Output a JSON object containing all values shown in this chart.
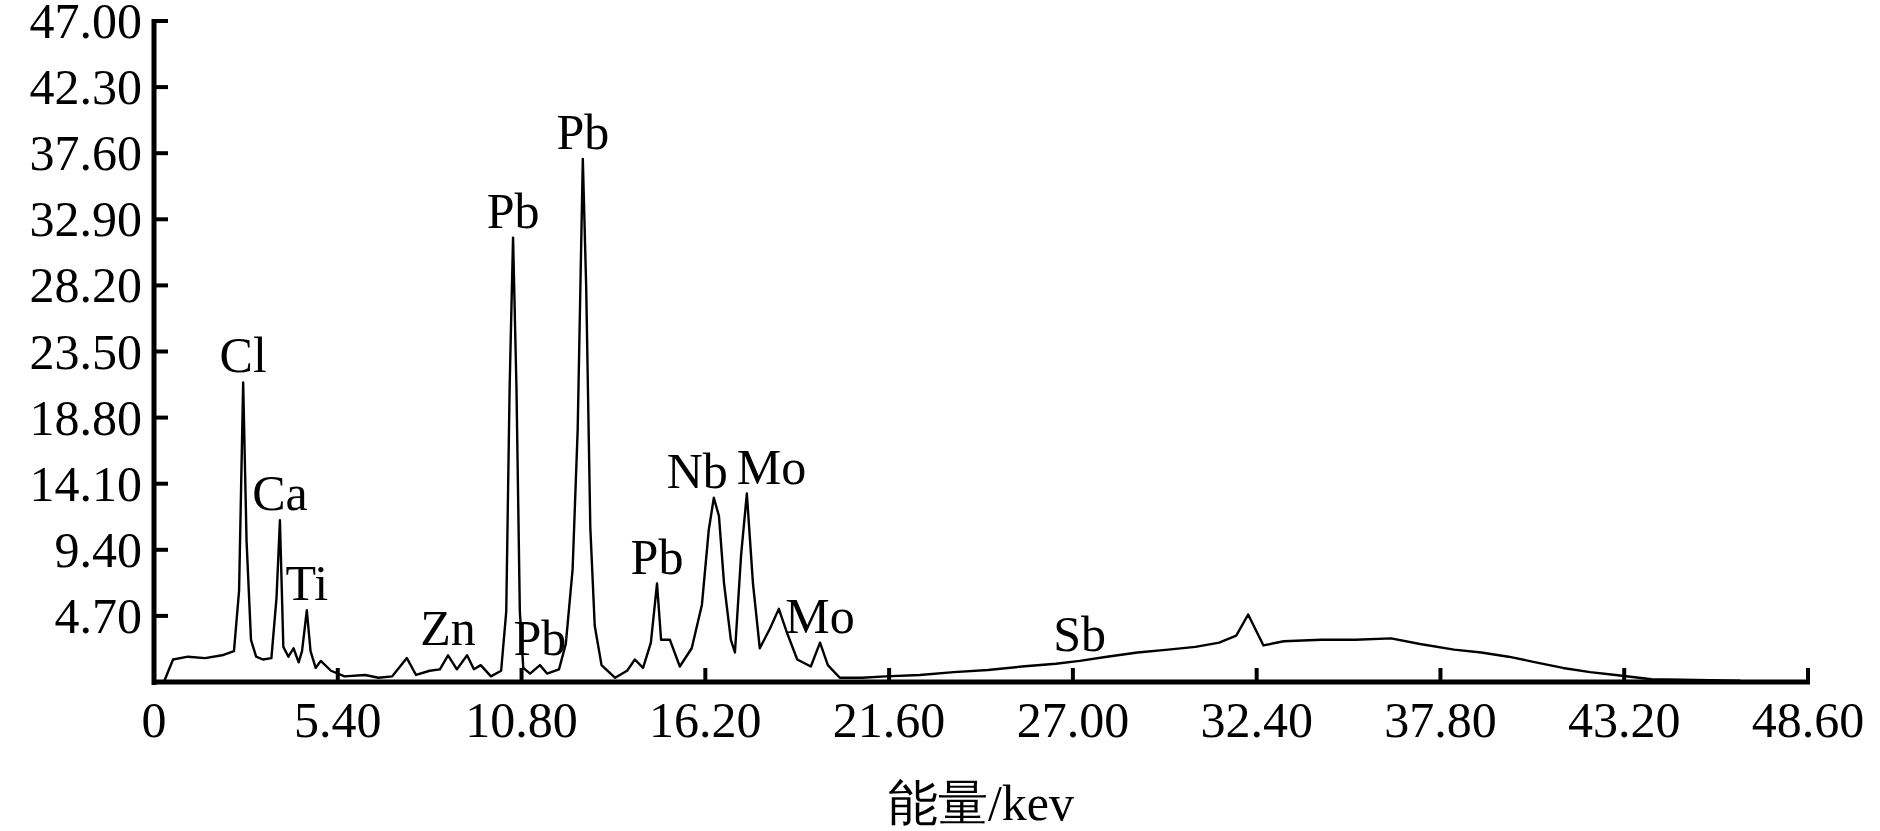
{
  "chart_data": {
    "type": "line",
    "xlabel": "能量/kev",
    "xlim": [
      0,
      48.6
    ],
    "ylim": [
      0,
      47
    ],
    "xticks": [
      0,
      {
        "value": 5.4,
        "label": "5.40"
      },
      {
        "value": 10.8,
        "label": "10.80"
      },
      {
        "value": 16.2,
        "label": "16.20"
      },
      {
        "value": 21.6,
        "label": "21.60"
      },
      {
        "value": 27,
        "label": "27.00"
      },
      {
        "value": 32.4,
        "label": "32.40"
      },
      {
        "value": 37.8,
        "label": "37.80"
      },
      {
        "value": 43.2,
        "label": "43.20"
      },
      {
        "value": 48.6,
        "label": "48.60"
      }
    ],
    "yticks": [
      {
        "value": 4.7,
        "label": "4.70"
      },
      {
        "value": 9.4,
        "label": "9.40"
      },
      {
        "value": 14.1,
        "label": "14.10"
      },
      {
        "value": 18.8,
        "label": "18.80"
      },
      {
        "value": 23.5,
        "label": "23.50"
      },
      {
        "value": 28.2,
        "label": "28.20"
      },
      {
        "value": 32.9,
        "label": "32.90"
      },
      {
        "value": 37.6,
        "label": "37.60"
      },
      {
        "value": 42.3,
        "label": "42.30"
      },
      {
        "value": 47,
        "label": "47.00"
      }
    ],
    "grid": false,
    "marker": "none",
    "line_style": "solid",
    "series": [
      {
        "color": "#000000",
        "x": [
          0,
          0.3,
          0.56,
          1.0,
          1.5,
          2.0,
          2.35,
          2.5,
          2.62,
          2.72,
          2.85,
          3.0,
          3.2,
          3.45,
          3.6,
          3.7,
          3.8,
          3.95,
          4.1,
          4.25,
          4.35,
          4.49,
          4.6,
          4.75,
          4.9,
          5.2,
          5.6,
          6.2,
          6.6,
          7.0,
          7.43,
          7.7,
          8.1,
          8.4,
          8.64,
          8.9,
          9.2,
          9.4,
          9.6,
          9.9,
          10.2,
          10.35,
          10.45,
          10.55,
          10.65,
          10.75,
          10.85,
          11.05,
          11.34,
          11.55,
          11.9,
          12.1,
          12.3,
          12.45,
          12.6,
          12.7,
          12.82,
          12.95,
          13.15,
          13.55,
          13.9,
          14.13,
          14.37,
          14.6,
          14.78,
          14.9,
          15.16,
          15.45,
          15.8,
          16.1,
          16.3,
          16.45,
          16.6,
          16.75,
          16.95,
          17.07,
          17.25,
          17.42,
          17.6,
          17.8,
          18.1,
          18.36,
          18.6,
          18.9,
          19.3,
          19.57,
          19.8,
          20.15,
          20.8,
          21.5,
          22.5,
          23.5,
          24.5,
          25.5,
          26.5,
          27.2,
          28.0,
          28.9,
          29.8,
          30.6,
          31.3,
          31.8,
          32.15,
          32.6,
          33.2,
          34.3,
          35.3,
          36.35,
          37.2,
          38.2,
          39.0,
          39.8,
          40.6,
          41.4,
          42.2,
          42.95,
          44.0,
          45.3,
          46.6
        ],
        "values": [
          0,
          0.05,
          1.6,
          1.8,
          1.7,
          1.9,
          2.2,
          6.5,
          21.3,
          10.0,
          3.0,
          1.8,
          1.6,
          1.7,
          6.0,
          11.5,
          2.5,
          1.8,
          2.4,
          1.4,
          2.2,
          5.1,
          2.2,
          1.0,
          1.5,
          0.8,
          0.4,
          0.5,
          0.3,
          0.4,
          1.7,
          0.5,
          0.8,
          0.9,
          1.9,
          0.9,
          1.9,
          0.9,
          1.2,
          0.4,
          0.8,
          5.0,
          21.0,
          31.6,
          21.0,
          5.0,
          1.0,
          0.6,
          1.2,
          0.6,
          0.9,
          2.7,
          8.0,
          18.0,
          37.2,
          28.0,
          11.0,
          4.0,
          1.2,
          0.3,
          0.8,
          1.6,
          1.0,
          2.8,
          7.0,
          3.0,
          3.0,
          1.1,
          2.4,
          5.5,
          10.8,
          13.1,
          11.8,
          7.0,
          3.0,
          2.1,
          9.0,
          13.4,
          7.0,
          2.4,
          3.8,
          5.2,
          3.5,
          1.6,
          1.1,
          2.8,
          1.2,
          0.3,
          0.3,
          0.4,
          0.5,
          0.7,
          0.85,
          1.1,
          1.3,
          1.5,
          1.8,
          2.1,
          2.3,
          2.5,
          2.8,
          3.3,
          4.8,
          2.6,
          2.9,
          3.0,
          3.0,
          3.1,
          2.7,
          2.3,
          2.1,
          1.8,
          1.4,
          1.0,
          0.7,
          0.5,
          0.2,
          0.15,
          0.1
        ]
      }
    ],
    "annotations": [
      {
        "text": "Cl",
        "x": 2.62,
        "y": 21.3
      },
      {
        "text": "Ca",
        "x": 3.7,
        "y": 11.5
      },
      {
        "text": "Ti",
        "x": 4.49,
        "y": 5.1
      },
      {
        "text": "Zn",
        "x": 8.64,
        "y": 1.9
      },
      {
        "text": "Pb",
        "x": 10.55,
        "y": 31.6
      },
      {
        "text": "Pb",
        "x": 11.34,
        "y": 1.2
      },
      {
        "text": "Pb",
        "x": 12.6,
        "y": 37.2
      },
      {
        "text": "Pb",
        "x": 14.78,
        "y": 7.0
      },
      {
        "text": "Nb",
        "x": 16.45,
        "y": 13.1
      },
      {
        "text": "Mo",
        "x": 17.42,
        "y": 13.4
      },
      {
        "text": "Mo",
        "x": 19.57,
        "y": 2.8
      },
      {
        "text": "Sb",
        "x": 27.2,
        "y": 1.5
      }
    ]
  }
}
